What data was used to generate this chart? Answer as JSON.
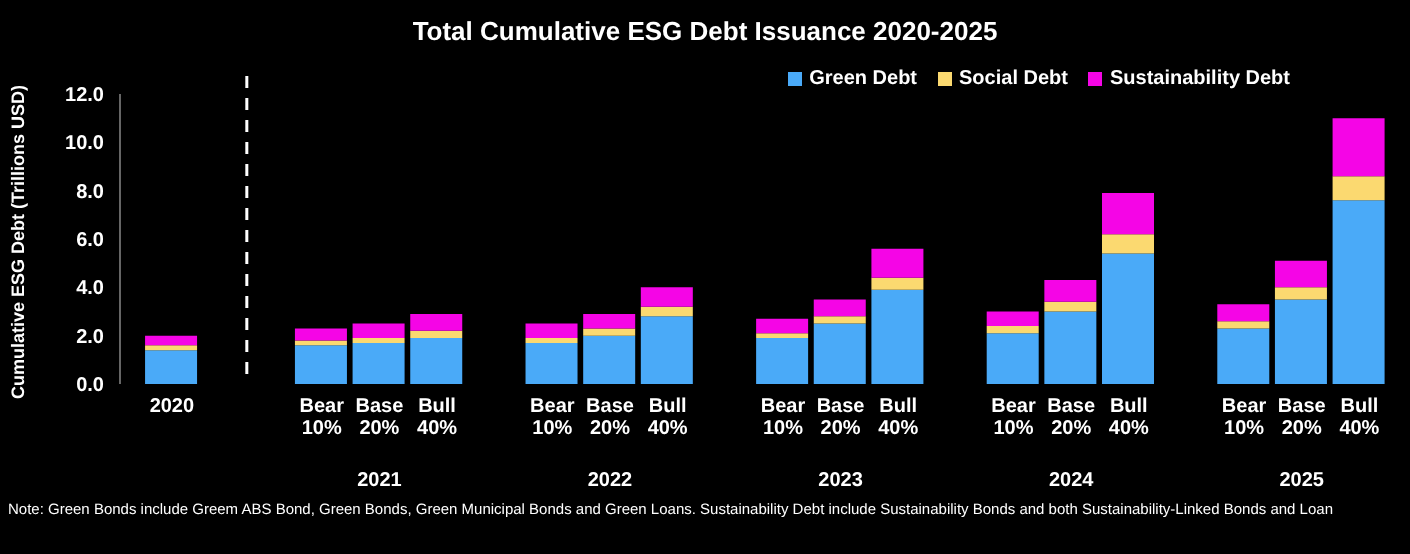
{
  "chart_data": {
    "type": "bar",
    "stacked": true,
    "title": "Total Cumulative ESG Debt Issuance 2020-2025",
    "ylabel": "Cumulative ESG Debt (Trillions USD)",
    "categories": [
      "2020",
      "Bear 10%",
      "Base 20%",
      "Bull 40%",
      "Bear 10%",
      "Base 20%",
      "Bull 40%",
      "Bear 10%",
      "Base 20%",
      "Bull 40%",
      "Bear 10%",
      "Base 20%",
      "Bull 40%",
      "Bear 10%",
      "Base 20%",
      "Bull 40%"
    ],
    "series": [
      {
        "name": "Green Debt",
        "color": "#4aaaf8",
        "values": [
          1.4,
          1.6,
          1.7,
          1.9,
          1.7,
          2.0,
          2.8,
          1.9,
          2.5,
          3.9,
          2.1,
          3.0,
          5.4,
          2.3,
          3.5,
          7.6
        ]
      },
      {
        "name": "Social Debt",
        "color": "#fbd970",
        "values": [
          0.2,
          0.2,
          0.2,
          0.3,
          0.2,
          0.3,
          0.4,
          0.2,
          0.3,
          0.5,
          0.3,
          0.4,
          0.8,
          0.3,
          0.5,
          1.0
        ]
      },
      {
        "name": "Sustainability Debt",
        "color": "#f505e6",
        "values": [
          0.4,
          0.5,
          0.6,
          0.7,
          0.6,
          0.6,
          0.8,
          0.6,
          0.7,
          1.2,
          0.6,
          0.9,
          1.7,
          0.7,
          1.1,
          2.4
        ]
      }
    ],
    "ylim": [
      0,
      12
    ],
    "yticks": [
      {
        "value": 0,
        "label": "0.0"
      },
      {
        "value": 2,
        "label": "2.0"
      },
      {
        "value": 4,
        "label": "4.0"
      },
      {
        "value": 6,
        "label": "6.0"
      },
      {
        "value": 8,
        "label": "8.0"
      },
      {
        "value": 10,
        "label": "10.0"
      },
      {
        "value": 12,
        "label": "12.0"
      }
    ],
    "grid": false,
    "legend": "top right",
    "annotations": [
      "2021",
      "2022",
      "2023",
      "2024",
      "2025",
      "Note: Green Bonds include Greem ABS Bond, Green Bonds, Green Municipal Bonds and Green Loans. Sustainability Debt include Sustainability Bonds and both Sustainability-Linked Bonds and Loan"
    ]
  }
}
